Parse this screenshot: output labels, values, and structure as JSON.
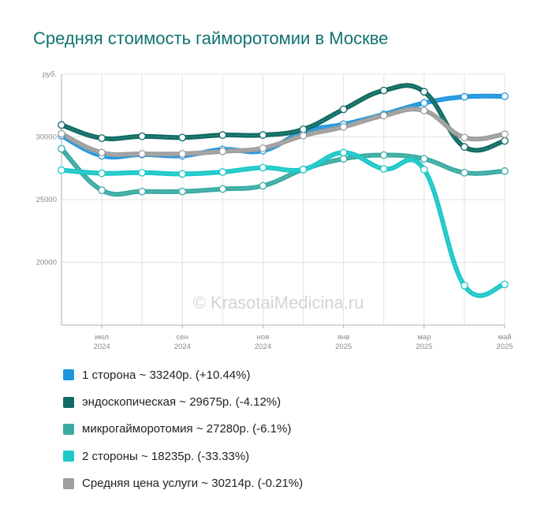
{
  "title": "Средняя стоимость гайморотомии в Москве",
  "watermark": "© KrasotaiMedicina.ru",
  "chart_data": {
    "type": "line",
    "title": "Средняя стоимость гайморотомии в Москве",
    "ylabel": "руб.",
    "ylim": [
      15000,
      35000
    ],
    "yticks": [
      "20000",
      "25000",
      "30000"
    ],
    "grid": true,
    "legend_position": "bottom",
    "x": [
      "2024-06",
      "2024-07",
      "2024-08",
      "2024-09",
      "2024-10",
      "2024-11",
      "2024-12",
      "2025-01",
      "2025-02",
      "2025-03",
      "2025-04",
      "2025-05"
    ],
    "xticks": [
      {
        "x": "2024-07",
        "month": "июл",
        "year": "2024"
      },
      {
        "x": "2024-09",
        "month": "сен",
        "year": "2024"
      },
      {
        "x": "2024-11",
        "month": "ноя",
        "year": "2024"
      },
      {
        "x": "2025-01",
        "month": "янв",
        "year": "2025"
      },
      {
        "x": "2025-03",
        "month": "мар",
        "year": "2025"
      },
      {
        "x": "2025-05",
        "month": "май",
        "year": "2025"
      }
    ],
    "series": [
      {
        "name": "1 сторона",
        "color": "#2196de",
        "legend": "1 сторона ~ 33240р. (+10.44%)",
        "values": [
          30100,
          28500,
          28600,
          28500,
          29000,
          28900,
          30400,
          31000,
          31800,
          32700,
          33200,
          33240
        ]
      },
      {
        "name": "эндоскопическая",
        "color": "#0f6b63",
        "legend": "эндоскопическая ~ 29675р. (-4.12%)",
        "values": [
          30950,
          29900,
          30050,
          29950,
          30150,
          30150,
          30600,
          32200,
          33700,
          33600,
          29200,
          29675
        ]
      },
      {
        "name": "микрогайморотомия",
        "color": "#3aaba3",
        "legend": "микрогайморотомия ~ 27280р. (-6.1%)",
        "values": [
          29050,
          25750,
          25650,
          25650,
          25850,
          26100,
          27400,
          28250,
          28550,
          28250,
          27150,
          27280
        ]
      },
      {
        "name": "2 стороны",
        "color": "#1cc8c8",
        "legend": "2 стороны ~ 18235р. (-33.33%)",
        "values": [
          27350,
          27100,
          27150,
          27050,
          27200,
          27550,
          27400,
          28750,
          27450,
          27400,
          18150,
          18235
        ]
      },
      {
        "name": "Средняя цена услуги",
        "color": "#9e9e9e",
        "legend": "Средняя цена услуги ~ 30214р. (-0.21%)",
        "values": [
          30250,
          28750,
          28650,
          28650,
          28850,
          29100,
          30100,
          30800,
          31700,
          32100,
          29950,
          30214
        ]
      }
    ]
  }
}
